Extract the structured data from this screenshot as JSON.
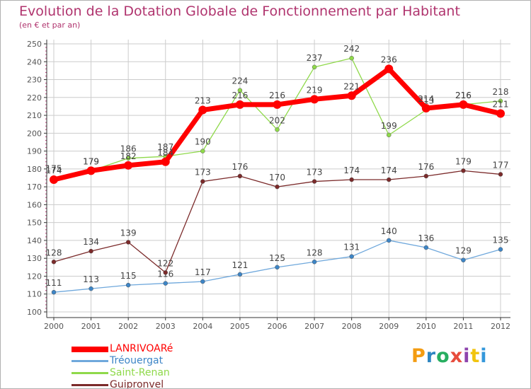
{
  "title": "Evolution de la Dotation Globale de Fonctionnement par Habitant",
  "subtitle": "(en € et par an)",
  "logo_text": "Proxiti",
  "colors": {
    "title": "#b0346e",
    "grid": "#cccccc",
    "axis": "#333333",
    "label": "#555555",
    "logo_letters": [
      "#f39c12",
      "#2e86c1",
      "#27ae60",
      "#e74c3c",
      "#8e44ad",
      "#f1c40f",
      "#3498db"
    ]
  },
  "chart_data": {
    "type": "line",
    "x": [
      "2000",
      "2001",
      "2002",
      "2003",
      "2004",
      "2005",
      "2006",
      "2007",
      "2008",
      "2009",
      "2010",
      "2011",
      "2012"
    ],
    "ylim": [
      100,
      250
    ],
    "yticks": [
      100,
      110,
      120,
      130,
      140,
      150,
      160,
      170,
      180,
      190,
      200,
      210,
      220,
      230,
      240,
      250
    ],
    "grid": true,
    "legend_position": "bottom-left",
    "series": [
      {
        "name": "Saint-Renan",
        "color": "#8fd94a",
        "marker_color": "#8fd94a",
        "values": [
          175,
          179,
          186,
          187,
          190,
          224,
          202,
          237,
          242,
          199,
          213,
          216,
          218
        ]
      },
      {
        "name": "Tréouergat",
        "color": "#6fa8dc",
        "marker_color": "#3d85c6",
        "values": [
          111,
          113,
          115,
          116,
          117,
          121,
          125,
          128,
          131,
          140,
          136,
          129,
          135
        ]
      },
      {
        "name": "Guipronvel",
        "color": "#7b2a2a",
        "marker_color": "#7b2a2a",
        "values": [
          128,
          134,
          139,
          122,
          173,
          176,
          170,
          173,
          174,
          174,
          176,
          179,
          177
        ]
      },
      {
        "name": "LANRIVOARé",
        "color": "#ff0000",
        "marker_color": "#ff0000",
        "values": [
          174,
          179,
          182,
          184,
          213,
          216,
          216,
          219,
          221,
          236,
          214,
          216,
          211
        ]
      }
    ],
    "legend_order": [
      "LANRIVOARé",
      "Tréouergat",
      "Saint-Renan",
      "Guipronvel"
    ]
  }
}
